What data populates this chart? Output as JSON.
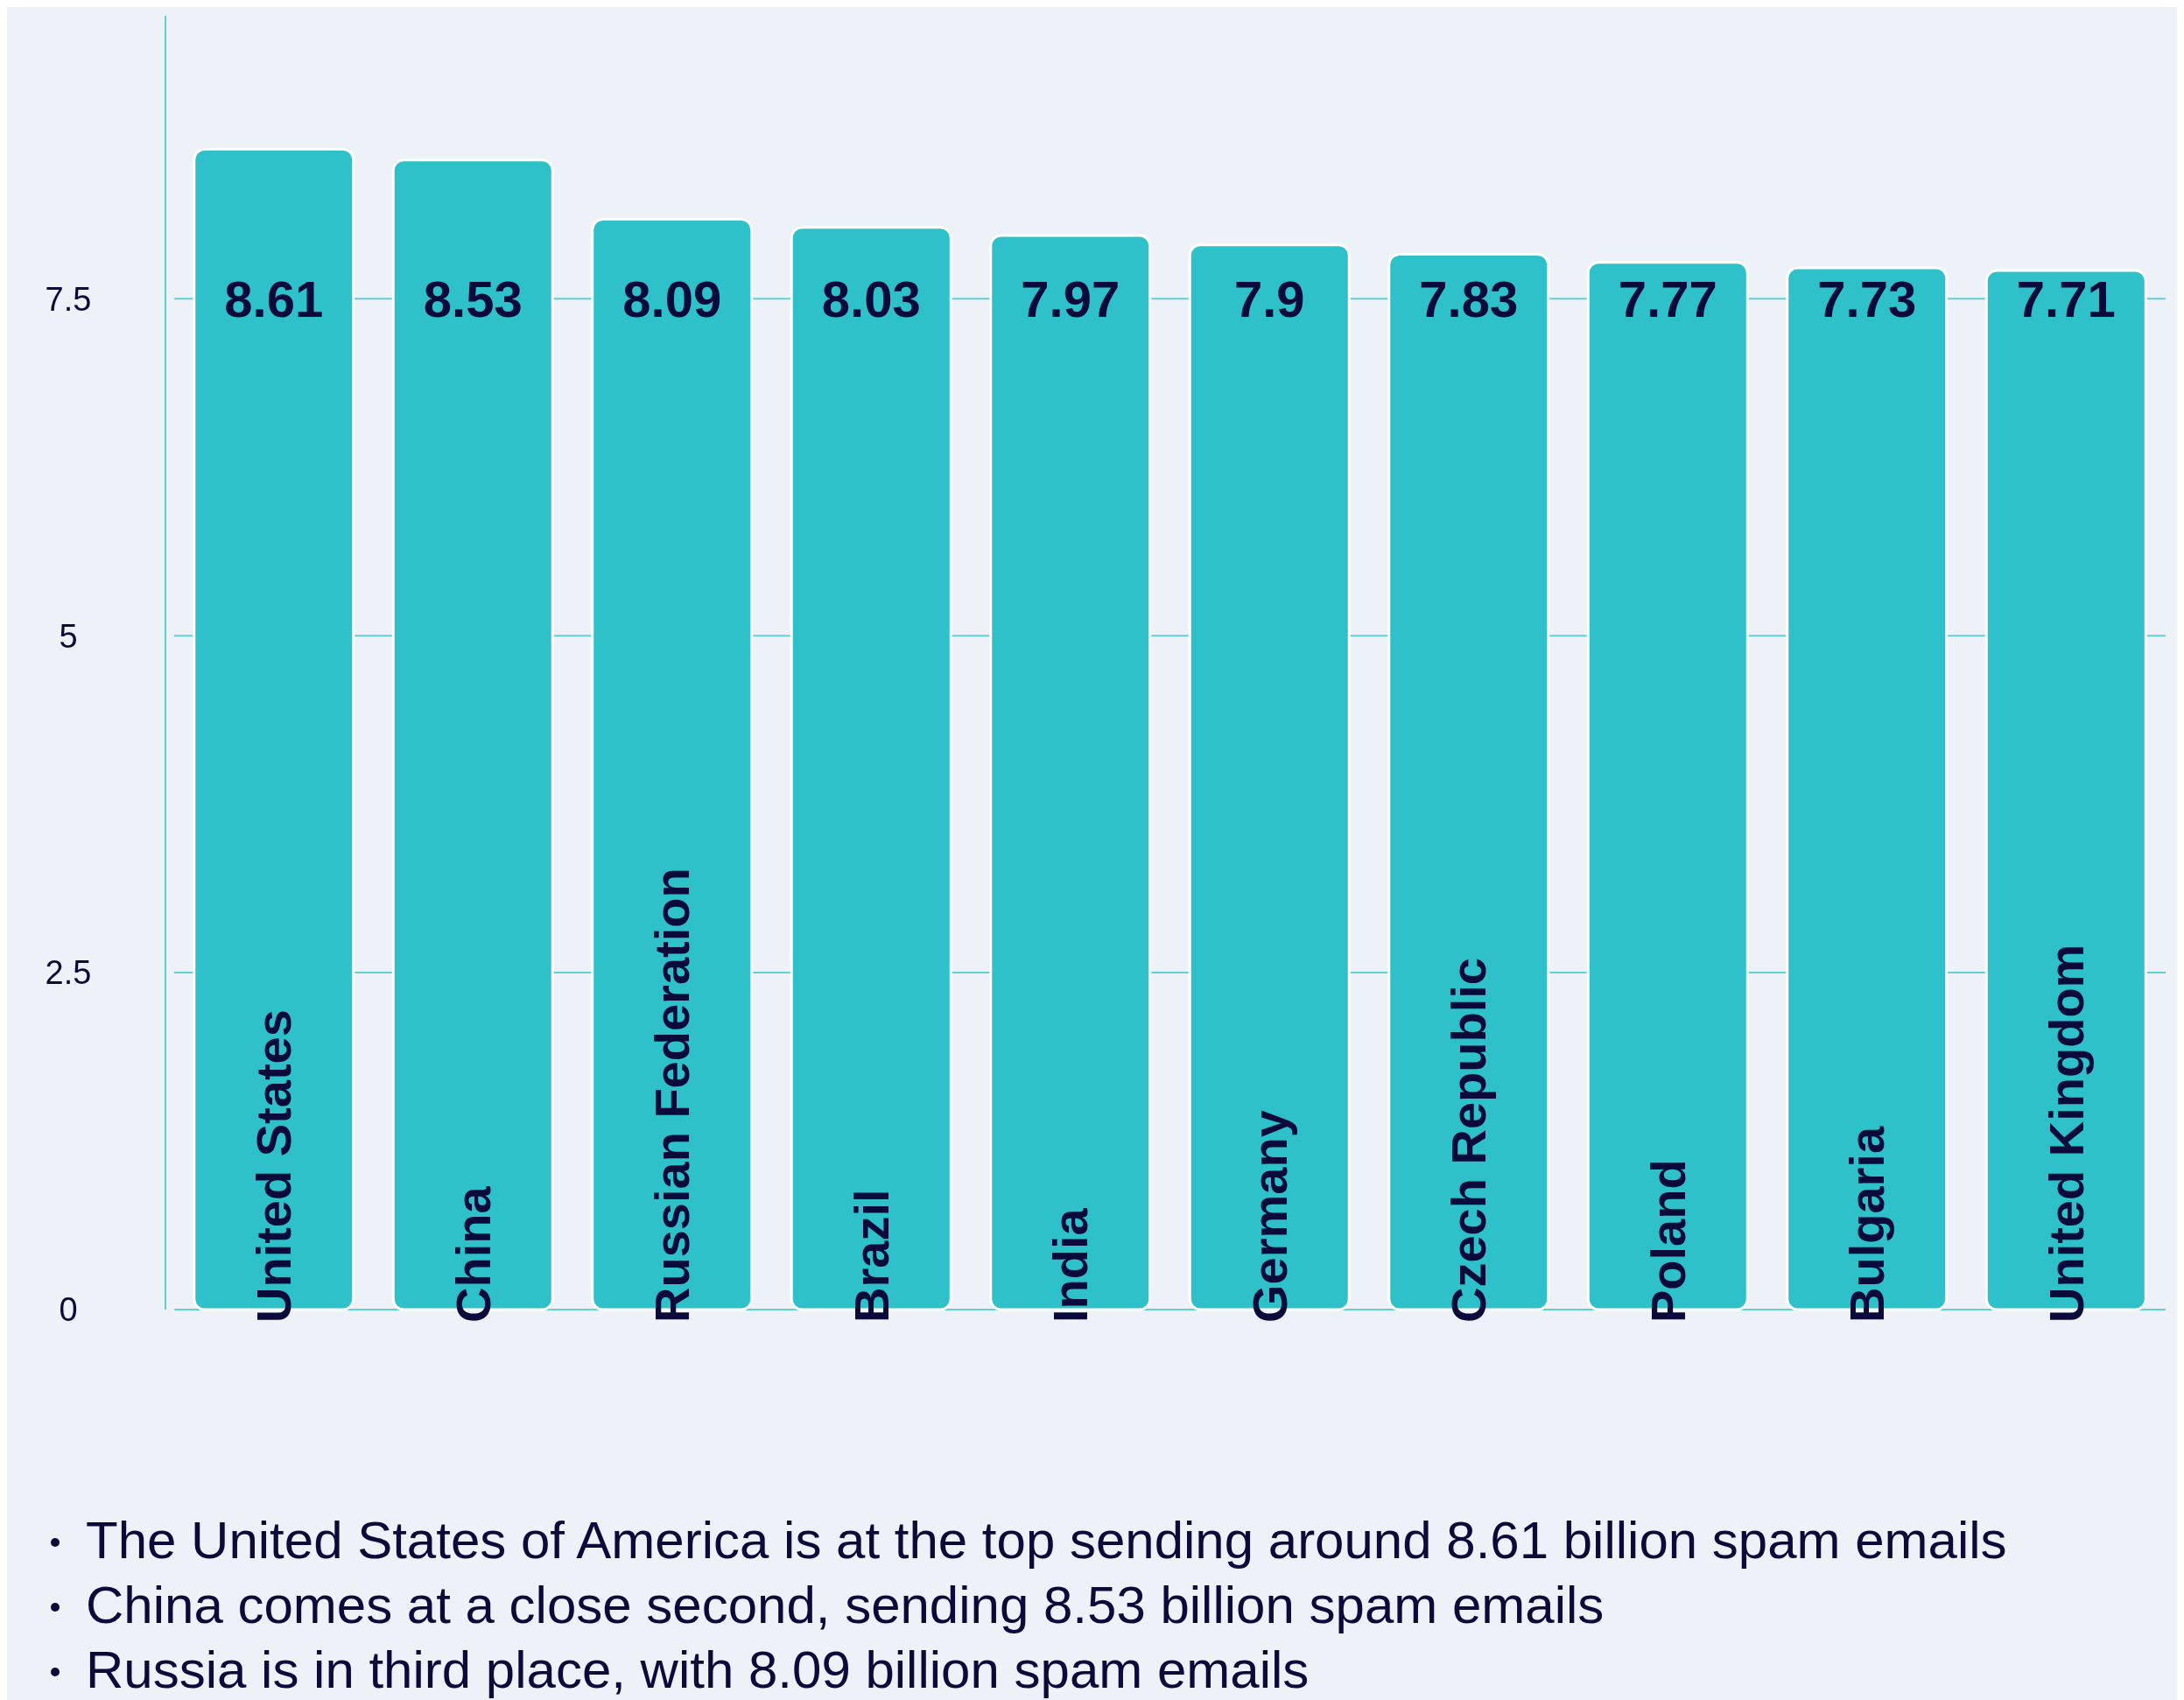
{
  "chart_data": {
    "type": "bar",
    "categories": [
      "United States",
      "China",
      "Russian Federation",
      "Brazil",
      "India",
      "Germany",
      "Czech Republic",
      "Poland",
      "Bulgaria",
      "United Kingdom"
    ],
    "values": [
      8.61,
      8.53,
      8.09,
      8.03,
      7.97,
      7.9,
      7.83,
      7.77,
      7.73,
      7.71
    ],
    "color": "#2ec1ca",
    "data_labels": true,
    "ylim": [
      0,
      9.6
    ],
    "yticks": [
      0,
      2.5,
      5,
      7.5
    ],
    "grid": "y",
    "annotations": [
      "The United States of America is at the top sending around 8.61 billion spam emails",
      "China comes at a close second, sending 8.53 billion spam emails",
      "Russia is in third place, with 8.09 billion spam emails"
    ]
  }
}
